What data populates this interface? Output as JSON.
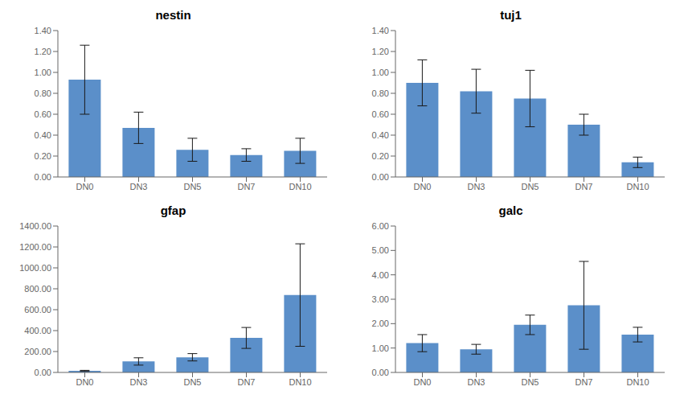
{
  "chart_data": [
    {
      "type": "bar",
      "title": "nestin",
      "categories": [
        "DN0",
        "DN3",
        "DN5",
        "DN7",
        "DN10"
      ],
      "values": [
        0.93,
        0.47,
        0.26,
        0.21,
        0.25
      ],
      "errors": [
        0.33,
        0.15,
        0.11,
        0.06,
        0.12
      ],
      "color": "#5b8fc9",
      "ylim": [
        0,
        1.4
      ],
      "yticks": [
        {
          "value": 0,
          "label": "0.00"
        },
        {
          "value": 0.2,
          "label": "0.20"
        },
        {
          "value": 0.4,
          "label": "0.40"
        },
        {
          "value": 0.6,
          "label": "0.60"
        },
        {
          "value": 0.8,
          "label": "0.80"
        },
        {
          "value": 1.0,
          "label": "1.00"
        },
        {
          "value": 1.2,
          "label": "1.20"
        },
        {
          "value": 1.4,
          "label": "1.40"
        }
      ],
      "grid": false
    },
    {
      "type": "bar",
      "title": "tuj1",
      "categories": [
        "DN0",
        "DN3",
        "DN5",
        "DN7",
        "DN10"
      ],
      "values": [
        0.9,
        0.82,
        0.75,
        0.5,
        0.14
      ],
      "errors": [
        0.22,
        0.21,
        0.27,
        0.1,
        0.05
      ],
      "color": "#5b8fc9",
      "ylim": [
        0,
        1.4
      ],
      "yticks": [
        {
          "value": 0,
          "label": "0.00"
        },
        {
          "value": 0.2,
          "label": "0.20"
        },
        {
          "value": 0.4,
          "label": "0.40"
        },
        {
          "value": 0.6,
          "label": "0.60"
        },
        {
          "value": 0.8,
          "label": "0.80"
        },
        {
          "value": 1.0,
          "label": "1.00"
        },
        {
          "value": 1.2,
          "label": "1.20"
        },
        {
          "value": 1.4,
          "label": "1.40"
        }
      ],
      "grid": false
    },
    {
      "type": "bar",
      "title": "gfap",
      "categories": [
        "DN0",
        "DN3",
        "DN5",
        "DN7",
        "DN10"
      ],
      "values": [
        15,
        105,
        145,
        330,
        740
      ],
      "errors": [
        5,
        35,
        35,
        100,
        490
      ],
      "color": "#5b8fc9",
      "ylim": [
        0,
        1400
      ],
      "yticks": [
        {
          "value": 0,
          "label": "0.00"
        },
        {
          "value": 200,
          "label": "200.00"
        },
        {
          "value": 400,
          "label": "400.00"
        },
        {
          "value": 600,
          "label": "600.00"
        },
        {
          "value": 800,
          "label": "800.00"
        },
        {
          "value": 1000,
          "label": "1000.00"
        },
        {
          "value": 1200,
          "label": "1200.00"
        },
        {
          "value": 1400,
          "label": "1400.00"
        }
      ],
      "grid": false
    },
    {
      "type": "bar",
      "title": "galc",
      "categories": [
        "DN0",
        "DN3",
        "DN5",
        "DN7",
        "DN10"
      ],
      "values": [
        1.2,
        0.95,
        1.95,
        2.75,
        1.55
      ],
      "errors": [
        0.35,
        0.2,
        0.4,
        1.8,
        0.3
      ],
      "color": "#5b8fc9",
      "ylim": [
        0,
        6.0
      ],
      "yticks": [
        {
          "value": 0,
          "label": "0.00"
        },
        {
          "value": 1,
          "label": "1.00"
        },
        {
          "value": 2,
          "label": "2.00"
        },
        {
          "value": 3,
          "label": "3.00"
        },
        {
          "value": 4,
          "label": "4.00"
        },
        {
          "value": 5,
          "label": "5.00"
        },
        {
          "value": 6,
          "label": "6.00"
        }
      ],
      "grid": false
    }
  ]
}
